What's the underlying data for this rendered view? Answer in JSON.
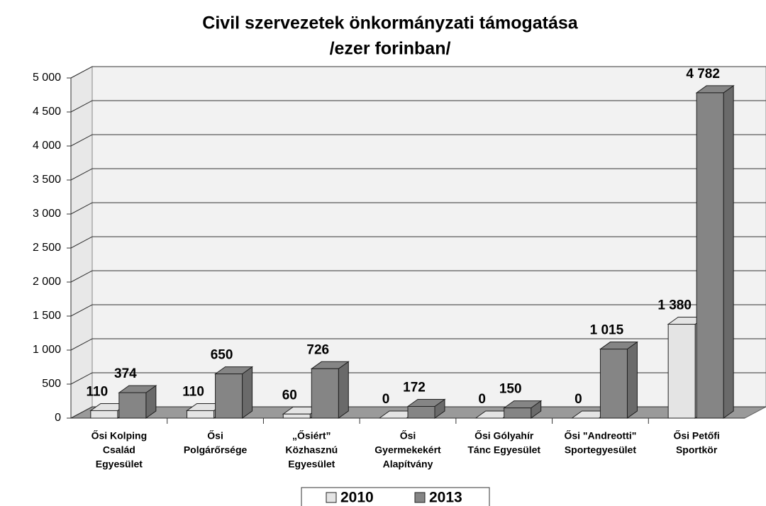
{
  "chart_data": {
    "type": "bar3d",
    "title": [
      "Civil szervezetek önkormányzati támogatása",
      "/ezer forinban/"
    ],
    "categories": [
      [
        "Ősi Kolping",
        "Család",
        "Egyesület"
      ],
      [
        "Ősi",
        "Polgárőrsége"
      ],
      [
        "„Ősiért”",
        "Közhasznú",
        "Egyesület"
      ],
      [
        "Ősi",
        "Gyermekekért",
        "Alapítvány"
      ],
      [
        "Ősi Gólyahír",
        "Tánc Egyesület"
      ],
      [
        "Ősi \"Andreotti\"",
        "Sportegyesület"
      ],
      [
        "Ősi Petőfi",
        "Sportkör"
      ]
    ],
    "series": [
      {
        "name": "2010",
        "color": "#e4e4e4",
        "values": [
          110,
          110,
          60,
          0,
          0,
          0,
          1380
        ],
        "value_labels": [
          "110",
          "110",
          "60",
          "0",
          "0",
          "0",
          "1 380"
        ]
      },
      {
        "name": "2013",
        "color": "#858585",
        "values": [
          374,
          650,
          726,
          172,
          150,
          1015,
          4782
        ],
        "value_labels": [
          "374",
          "650",
          "726",
          "172",
          "150",
          "1 015",
          "4 782"
        ]
      }
    ],
    "ylim": [
      0,
      5000
    ],
    "yticks": [
      0,
      500,
      {
        "value": 1000,
        "label": "1 000"
      },
      {
        "value": 1500,
        "label": "1 500"
      },
      {
        "value": 2000,
        "label": "2 000"
      },
      {
        "value": 2500,
        "label": "2 500"
      },
      {
        "value": 3000,
        "label": "3 000"
      },
      {
        "value": 3500,
        "label": "3 500"
      },
      {
        "value": 4000,
        "label": "4 000"
      },
      {
        "value": 4500,
        "label": "4 500"
      },
      {
        "value": 5000,
        "label": "5 000"
      }
    ],
    "grid": true,
    "legend": "bottom"
  }
}
